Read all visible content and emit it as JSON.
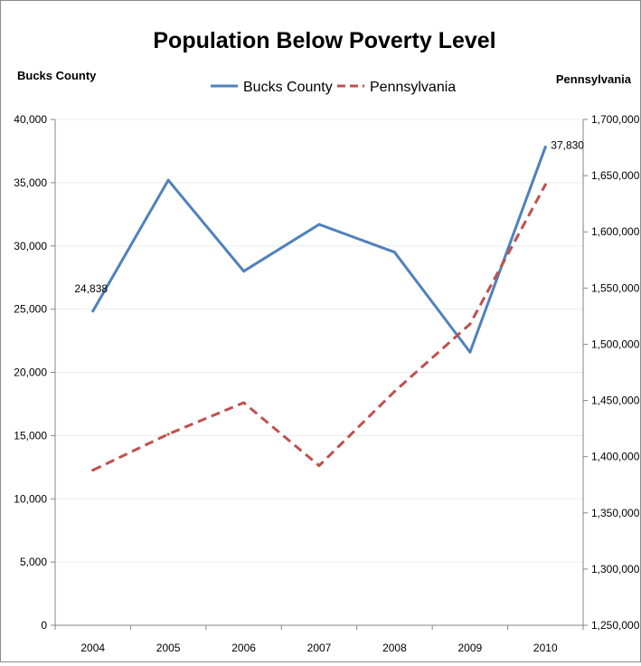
{
  "chart_data": {
    "type": "line",
    "title": "Population Below Poverty Level",
    "y_left_label": "Bucks County",
    "y_right_label": "Pennsylvania",
    "categories": [
      "2004",
      "2005",
      "2006",
      "2007",
      "2008",
      "2009",
      "2010"
    ],
    "y_left_range": [
      0,
      40000
    ],
    "y_left_ticks": [
      "0",
      "5,000",
      "10,000",
      "15,000",
      "20,000",
      "25,000",
      "30,000",
      "35,000",
      "40,000"
    ],
    "y_right_range": [
      1250000,
      1700000
    ],
    "y_right_ticks": [
      "1,250,000",
      "1,300,000",
      "1,350,000",
      "1,400,000",
      "1,450,000",
      "1,500,000",
      "1,550,000",
      "1,600,000",
      "1,650,000",
      "1,700,000"
    ],
    "legend_position": "top",
    "grid": true,
    "series": [
      {
        "name": "Bucks County",
        "axis": "left",
        "style": "solid",
        "color": "#4f81bd",
        "values": [
          24838,
          35200,
          28000,
          31700,
          29500,
          21600,
          37830
        ]
      },
      {
        "name": "Pennsylvania",
        "axis": "right",
        "style": "dashed",
        "color": "#c0504d",
        "values": [
          1388000,
          1420000,
          1448000,
          1392000,
          1458000,
          1518000,
          1642000
        ]
      }
    ],
    "annotations": [
      {
        "series": 0,
        "index": 0,
        "text": "24,838"
      },
      {
        "series": 0,
        "index": 6,
        "text": "37,830"
      }
    ]
  }
}
